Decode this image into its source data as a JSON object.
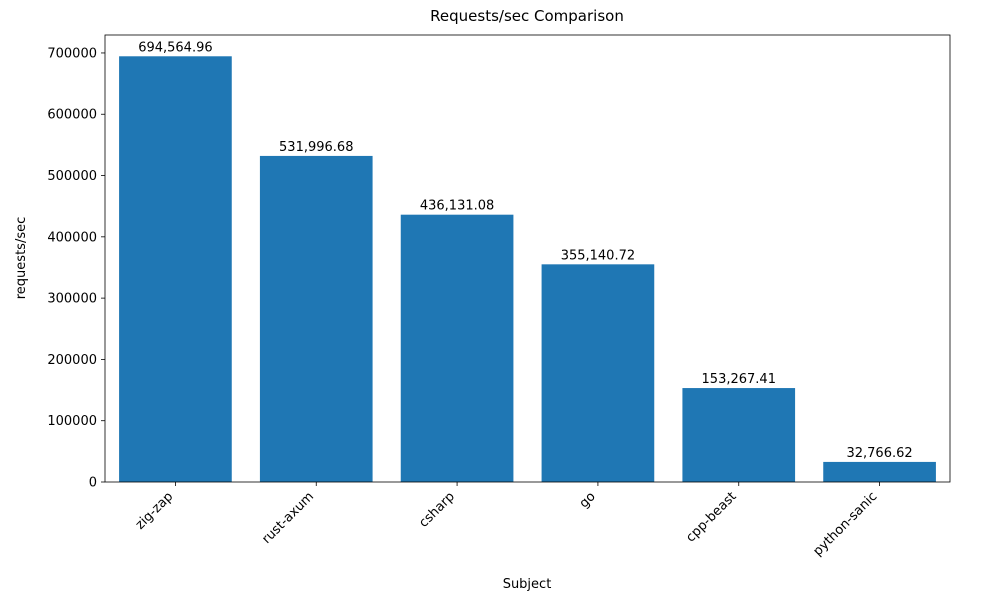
{
  "figure": {
    "background": "#ffffff"
  },
  "chart_data": {
    "type": "bar",
    "title": "Requests/sec Comparison",
    "xlabel": "Subject",
    "ylabel": "requests/sec",
    "categories": [
      "zig-zap",
      "rust-axum",
      "csharp",
      "go",
      "cpp-beast",
      "python-sanic"
    ],
    "values": [
      694564.96,
      531996.68,
      436131.08,
      355140.72,
      153267.41,
      32766.62
    ],
    "value_labels": [
      "694,564.96",
      "531,996.68",
      "436,131.08",
      "355,140.72",
      "153,267.41",
      "32,766.62"
    ],
    "ylim": [
      0,
      729293
    ],
    "yticks": [
      0,
      100000,
      200000,
      300000,
      400000,
      500000,
      600000,
      700000
    ],
    "ytick_labels": [
      "0",
      "100000",
      "200000",
      "300000",
      "400000",
      "500000",
      "600000",
      "700000"
    ],
    "bar_color": "#1f77b4",
    "axis_color": "#000000",
    "grid": false,
    "legend_position": "none",
    "xtick_rotation_deg": 45
  }
}
